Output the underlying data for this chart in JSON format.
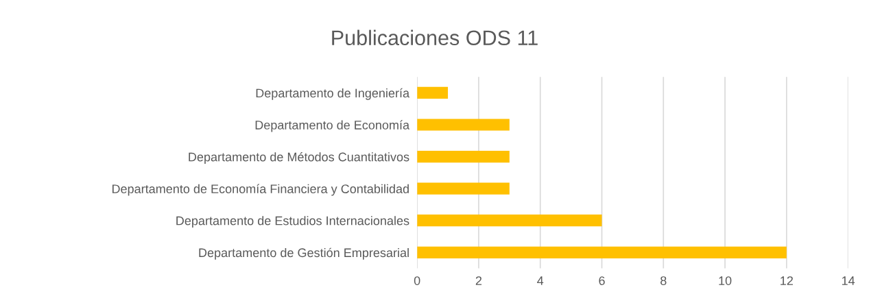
{
  "chart_data": {
    "type": "bar",
    "orientation": "horizontal",
    "title": "Publicaciones ODS 11",
    "categories": [
      "Departamento de Ingeniería",
      "Departamento de Economía",
      "Departamento de Métodos Cuantitativos",
      "Departamento de Economía Financiera y Contabilidad",
      "Departamento de Estudios Internacionales",
      "Departamento de Gestión Empresarial"
    ],
    "values": [
      1,
      3,
      3,
      3,
      6,
      12
    ],
    "color": "#ffc000",
    "xlim": [
      0,
      14
    ],
    "xticks": [
      0,
      2,
      4,
      6,
      8,
      10,
      12,
      14
    ],
    "grid": "x",
    "legend": false
  }
}
